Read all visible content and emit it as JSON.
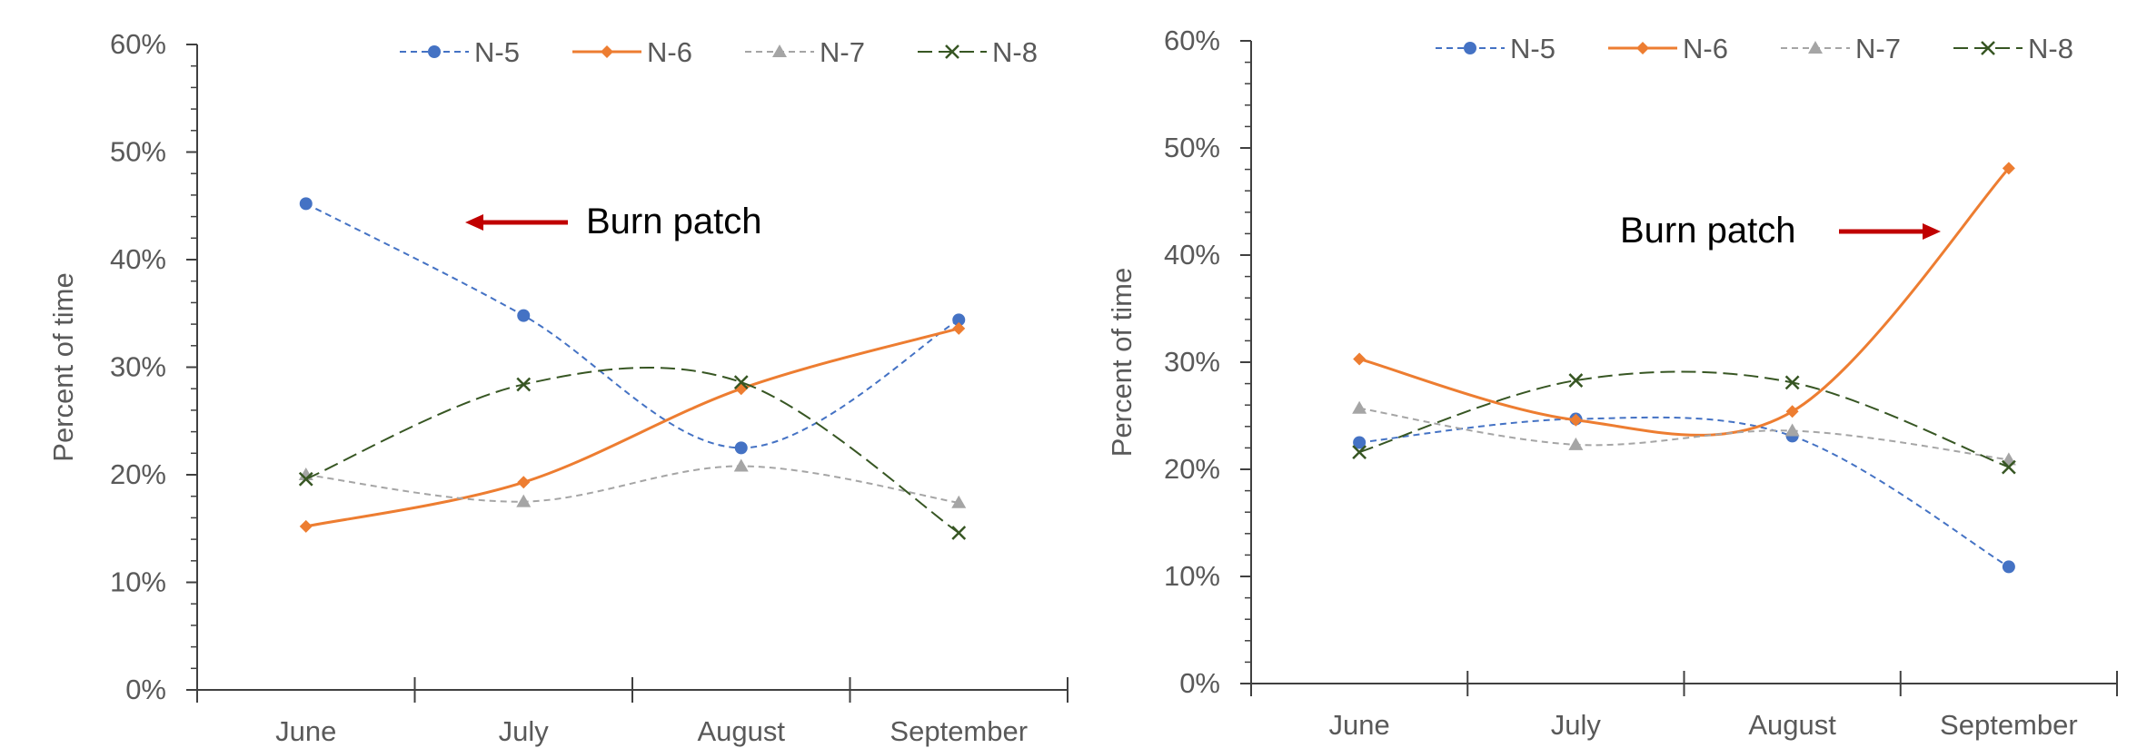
{
  "chart_data": [
    {
      "type": "line",
      "categories": [
        "June",
        "July",
        "August",
        "September"
      ],
      "ylabel": "Percent of time",
      "ylim": [
        0,
        60
      ],
      "yticks": [
        "0%",
        "10%",
        "20%",
        "30%",
        "40%",
        "50%",
        "60%"
      ],
      "grid": false,
      "legend_position": "top",
      "annotation": {
        "text": "Burn patch",
        "arrow": "left"
      },
      "series": [
        {
          "name": "N-5",
          "values": [
            45.2,
            34.8,
            22.5,
            34.4
          ],
          "color": "#4472C4",
          "marker": "circle",
          "line": "dashed",
          "smooth": true
        },
        {
          "name": "N-6",
          "values": [
            15.2,
            19.3,
            28.0,
            33.6
          ],
          "color": "#ED7D31",
          "marker": "diamond",
          "line": "solid",
          "smooth": true
        },
        {
          "name": "N-7",
          "values": [
            20.0,
            17.5,
            20.8,
            17.4
          ],
          "color": "#A5A5A5",
          "marker": "triangle",
          "line": "dashed",
          "smooth": true
        },
        {
          "name": "N-8",
          "values": [
            19.6,
            28.4,
            28.6,
            14.6
          ],
          "color": "#375623",
          "marker": "x",
          "line": "longdash",
          "smooth": true
        }
      ]
    },
    {
      "type": "line",
      "categories": [
        "June",
        "July",
        "August",
        "September"
      ],
      "ylabel": "Percent of time",
      "ylim": [
        0,
        60
      ],
      "yticks": [
        "0%",
        "10%",
        "20%",
        "30%",
        "40%",
        "50%",
        "60%"
      ],
      "grid": false,
      "legend_position": "top",
      "annotation": {
        "text": "Burn patch",
        "arrow": "right"
      },
      "series": [
        {
          "name": "N-5",
          "values": [
            22.5,
            24.7,
            23.1,
            10.9
          ],
          "color": "#4472C4",
          "marker": "circle",
          "line": "dashed",
          "smooth": true
        },
        {
          "name": "N-6",
          "values": [
            30.3,
            24.6,
            25.4,
            48.1
          ],
          "color": "#ED7D31",
          "marker": "diamond",
          "line": "solid",
          "smooth": true
        },
        {
          "name": "N-7",
          "values": [
            25.7,
            22.3,
            23.6,
            20.9
          ],
          "color": "#A5A5A5",
          "marker": "triangle",
          "line": "dashed",
          "smooth": true
        },
        {
          "name": "N-8",
          "values": [
            21.6,
            28.3,
            28.1,
            20.2
          ],
          "color": "#375623",
          "marker": "x",
          "line": "longdash",
          "smooth": true
        }
      ]
    }
  ]
}
